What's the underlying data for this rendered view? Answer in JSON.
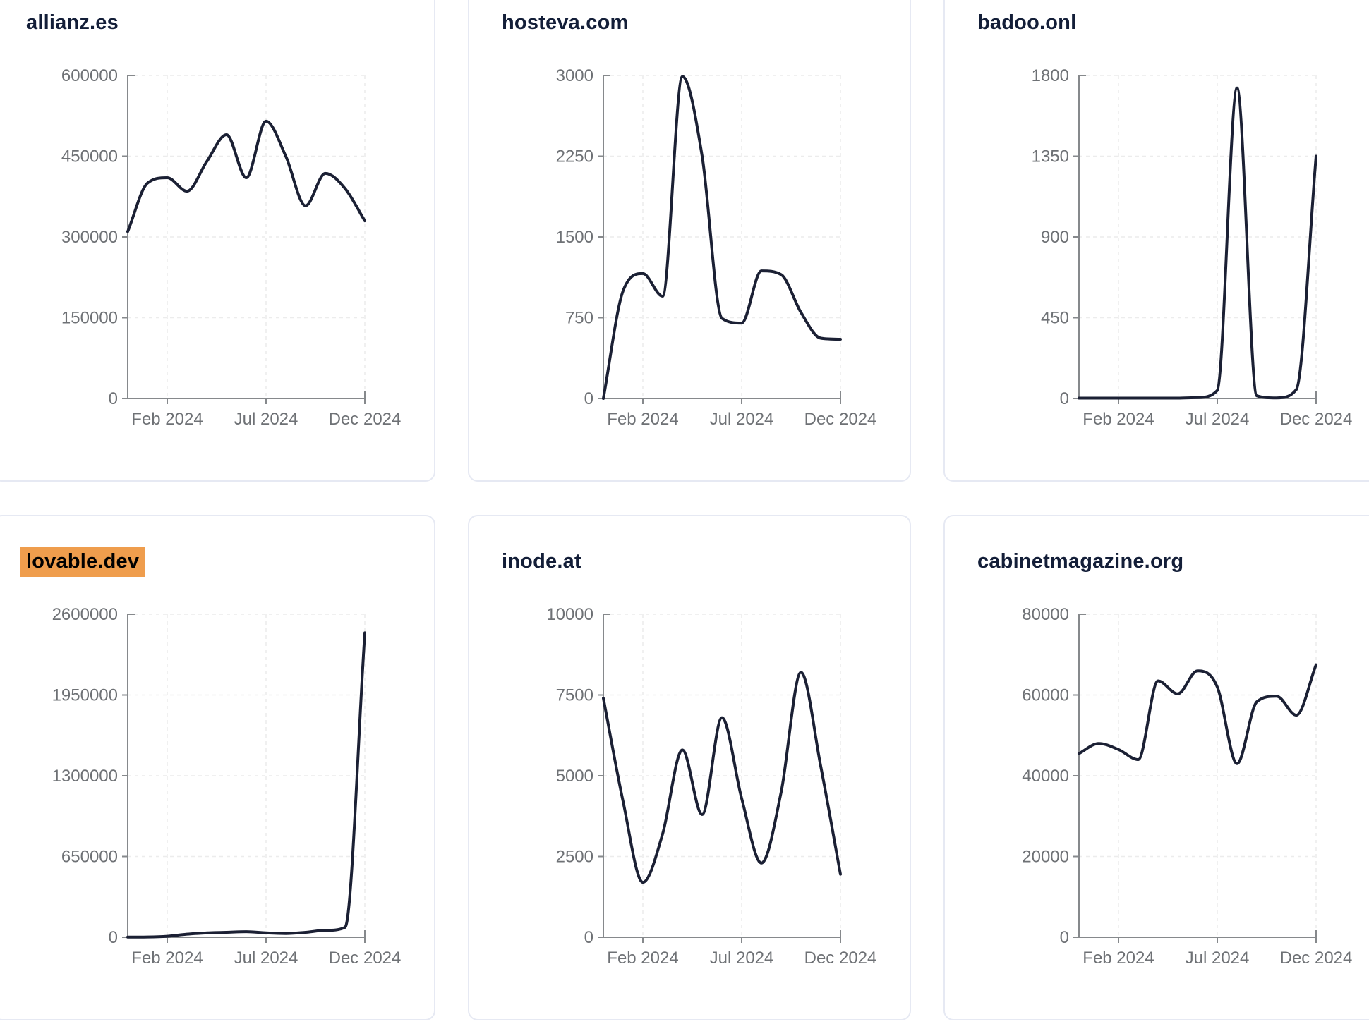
{
  "page": {
    "background_color": "#FFFFFF"
  },
  "style": {
    "line_color": "#1B2034",
    "axis_color": "#86898C",
    "grid_color": "#ECECEC",
    "tick_label_color": "#6E7175",
    "title_color": "#131E38",
    "card_border_color": "#E6E9F3",
    "card_background": "#FFFFFF",
    "highlight_color": "#EF9D4D",
    "highlight_text_color": "#000000"
  },
  "x_axis": {
    "tick_labels": [
      "Feb 2024",
      "Jul 2024",
      "Dec 2024"
    ],
    "tick_month_indices": [
      2,
      7,
      12
    ],
    "inferred_month_labels": [
      "Dec 2023",
      "Jan 2024",
      "Feb 2024",
      "Mar 2024",
      "Apr 2024",
      "May 2024",
      "Jun 2024",
      "Jul 2024",
      "Aug 2024",
      "Sep 2024",
      "Oct 2024",
      "Nov 2024",
      "Dec 2024"
    ]
  },
  "chart_data": [
    {
      "type": "line",
      "title": "allianz.es",
      "title_highlighted": false,
      "ylim": [
        0,
        600000
      ],
      "y_ticks": [
        0,
        150000,
        300000,
        450000,
        600000
      ],
      "x_tick_labels": [
        "Feb 2024",
        "Jul 2024",
        "Dec 2024"
      ],
      "x_tick_month_indices": [
        2,
        7,
        12
      ],
      "x": [
        "Dec 2023",
        "Jan 2024",
        "Feb 2024",
        "Mar 2024",
        "Apr 2024",
        "May 2024",
        "Jun 2024",
        "Jul 2024",
        "Aug 2024",
        "Sep 2024",
        "Oct 2024",
        "Nov 2024",
        "Dec 2024"
      ],
      "values": [
        310000,
        400000,
        410000,
        385000,
        440000,
        490000,
        410000,
        515000,
        450000,
        358000,
        418000,
        390000,
        330000
      ],
      "grid": true,
      "legend": false
    },
    {
      "type": "line",
      "title": "hosteva.com",
      "title_highlighted": false,
      "ylim": [
        0,
        3000
      ],
      "y_ticks": [
        0,
        750,
        1500,
        2250,
        3000
      ],
      "x_tick_labels": [
        "Feb 2024",
        "Jul 2024",
        "Dec 2024"
      ],
      "x_tick_month_indices": [
        2,
        7,
        12
      ],
      "x": [
        "Dec 2023",
        "Jan 2024",
        "Feb 2024",
        "Mar 2024",
        "Apr 2024",
        "May 2024",
        "Jun 2024",
        "Jul 2024",
        "Aug 2024",
        "Sep 2024",
        "Oct 2024",
        "Nov 2024",
        "Dec 2024"
      ],
      "values": [
        0,
        1000,
        1160,
        950,
        2990,
        2250,
        745,
        700,
        1185,
        1150,
        800,
        560,
        550
      ],
      "grid": true,
      "legend": false
    },
    {
      "type": "line",
      "title": "badoo.onl",
      "title_highlighted": false,
      "ylim": [
        0,
        1800
      ],
      "y_ticks": [
        0,
        450,
        900,
        1350,
        1800
      ],
      "x_tick_labels": [
        "Feb 2024",
        "Jul 2024",
        "Dec 2024"
      ],
      "x_tick_month_indices": [
        2,
        7,
        12
      ],
      "x": [
        "Dec 2023",
        "Jan 2024",
        "Feb 2024",
        "Mar 2024",
        "Apr 2024",
        "May 2024",
        "Jun 2024",
        "Jul 2024",
        "Aug 2024",
        "Sep 2024",
        "Oct 2024",
        "Nov 2024",
        "Dec 2024"
      ],
      "values": [
        2,
        2,
        2,
        2,
        2,
        2,
        5,
        45,
        1730,
        15,
        3,
        50,
        1350
      ],
      "grid": true,
      "legend": false
    },
    {
      "type": "line",
      "title": "lovable.dev",
      "title_highlighted": true,
      "ylim": [
        0,
        2600000
      ],
      "y_ticks": [
        0,
        650000,
        1300000,
        1950000,
        2600000
      ],
      "x_tick_labels": [
        "Feb 2024",
        "Jul 2024",
        "Dec 2024"
      ],
      "x_tick_month_indices": [
        2,
        7,
        12
      ],
      "x": [
        "Dec 2023",
        "Jan 2024",
        "Feb 2024",
        "Mar 2024",
        "Apr 2024",
        "May 2024",
        "Jun 2024",
        "Jul 2024",
        "Aug 2024",
        "Sep 2024",
        "Oct 2024",
        "Nov 2024",
        "Dec 2024"
      ],
      "values": [
        1000,
        2000,
        8000,
        25000,
        35000,
        40000,
        45000,
        35000,
        30000,
        40000,
        55000,
        80000,
        2450000
      ],
      "grid": true,
      "legend": false
    },
    {
      "type": "line",
      "title": "inode.at",
      "title_highlighted": false,
      "ylim": [
        0,
        10000
      ],
      "y_ticks": [
        0,
        2500,
        5000,
        7500,
        10000
      ],
      "x_tick_labels": [
        "Feb 2024",
        "Jul 2024",
        "Dec 2024"
      ],
      "x_tick_month_indices": [
        2,
        7,
        12
      ],
      "x": [
        "Dec 2023",
        "Jan 2024",
        "Feb 2024",
        "Mar 2024",
        "Apr 2024",
        "May 2024",
        "Jun 2024",
        "Jul 2024",
        "Aug 2024",
        "Sep 2024",
        "Oct 2024",
        "Nov 2024",
        "Dec 2024"
      ],
      "values": [
        7400,
        4200,
        1700,
        3200,
        5800,
        3800,
        6800,
        4300,
        2300,
        4500,
        8200,
        5300,
        1950
      ],
      "grid": true,
      "legend": false
    },
    {
      "type": "line",
      "title": "cabinetmagazine.org",
      "title_highlighted": false,
      "ylim": [
        0,
        80000
      ],
      "y_ticks": [
        0,
        20000,
        40000,
        60000,
        80000
      ],
      "x_tick_labels": [
        "Feb 2024",
        "Jul 2024",
        "Dec 2024"
      ],
      "x_tick_month_indices": [
        2,
        7,
        12
      ],
      "x": [
        "Dec 2023",
        "Jan 2024",
        "Feb 2024",
        "Mar 2024",
        "Apr 2024",
        "May 2024",
        "Jun 2024",
        "Jul 2024",
        "Aug 2024",
        "Sep 2024",
        "Oct 2024",
        "Nov 2024",
        "Dec 2024"
      ],
      "values": [
        45500,
        48000,
        46500,
        44000,
        63500,
        60300,
        66000,
        62000,
        43000,
        58300,
        59700,
        55000,
        67500
      ],
      "grid": true,
      "legend": false
    }
  ]
}
